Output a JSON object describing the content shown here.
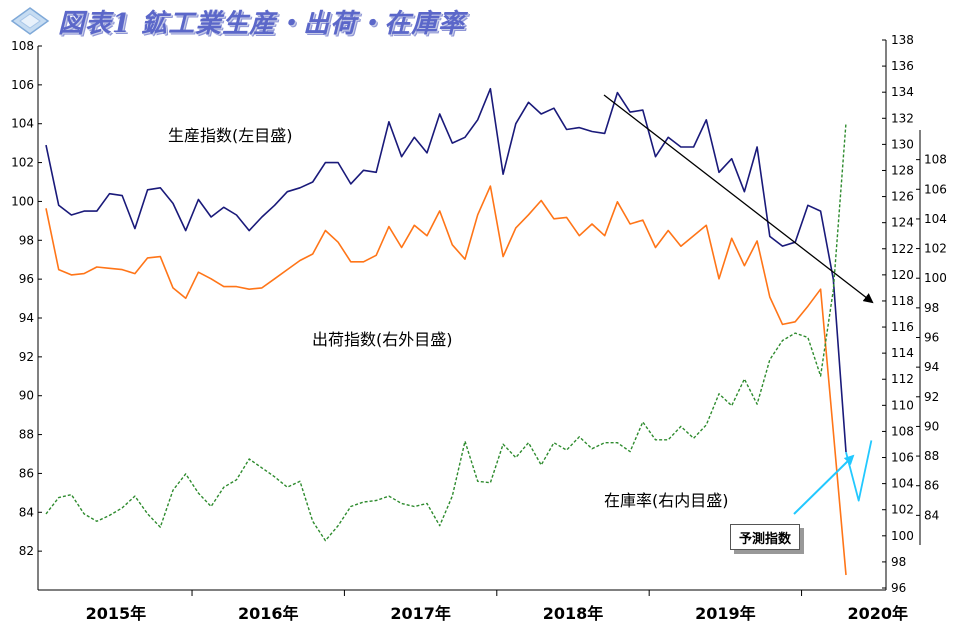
{
  "title": "図表1 鉱工業生産・出荷・在庫率",
  "colors": {
    "production": "#1a1a7a",
    "shipments": "#ff7518",
    "inventory": "#2e8b2e",
    "forecast": "#22c8ff",
    "trend": "#000000"
  },
  "annotations": {
    "production": "生産指数(左目盛)",
    "shipments": "出荷指数(右外目盛)",
    "inventory": "在庫率(右内目盛)",
    "forecast": "予測指数"
  },
  "chart_data": {
    "type": "line",
    "x_labels": [
      "2015年",
      "2016年",
      "2017年",
      "2018年",
      "2019年",
      "2020年"
    ],
    "axes": {
      "left": {
        "min": 80,
        "max": 108,
        "ticks": [
          82,
          84,
          86,
          88,
          90,
          92,
          94,
          96,
          98,
          100,
          102,
          104,
          106,
          108
        ]
      },
      "right_inner": {
        "min": 82,
        "max": 110,
        "ticks": [
          84,
          86,
          88,
          90,
          92,
          94,
          96,
          98,
          100,
          102,
          104,
          106,
          108
        ]
      },
      "right_outer": {
        "min": 96,
        "max": 138,
        "ticks": [
          96,
          98,
          100,
          102,
          104,
          106,
          108,
          110,
          112,
          114,
          116,
          118,
          120,
          122,
          124,
          126,
          128,
          130,
          132,
          134,
          136,
          138
        ]
      }
    },
    "series": [
      {
        "key": "production",
        "axis": "left",
        "values": [
          102.9,
          99.8,
          99.3,
          99.5,
          99.5,
          100.4,
          100.3,
          98.6,
          100.6,
          100.7,
          99.9,
          98.5,
          100.1,
          99.2,
          99.7,
          99.3,
          98.5,
          99.2,
          99.8,
          100.5,
          100.7,
          101.0,
          102.0,
          102.0,
          100.9,
          101.6,
          101.5,
          104.1,
          102.3,
          103.3,
          102.5,
          104.5,
          103.0,
          103.3,
          104.2,
          105.8,
          101.4,
          104.0,
          105.1,
          104.5,
          104.8,
          103.7,
          103.8,
          103.6,
          103.5,
          105.6,
          104.6,
          104.7,
          102.3,
          103.3,
          102.8,
          102.8,
          104.2,
          101.5,
          102.2,
          100.5,
          102.8,
          98.2,
          97.7,
          97.9,
          99.8,
          99.5,
          96.0,
          87.1
        ]
      },
      {
        "key": "shipments",
        "axis": "right_outer",
        "values": [
          125.1,
          120.4,
          120.0,
          120.1,
          120.6,
          120.5,
          120.4,
          120.1,
          121.3,
          121.4,
          119.0,
          118.2,
          120.2,
          119.7,
          119.1,
          119.1,
          118.9,
          119.0,
          119.7,
          120.4,
          121.1,
          121.6,
          123.4,
          122.5,
          121.0,
          121.0,
          121.5,
          123.7,
          122.1,
          123.8,
          123.0,
          124.9,
          122.3,
          121.2,
          124.6,
          126.8,
          121.4,
          123.6,
          124.6,
          125.7,
          124.3,
          124.4,
          123.0,
          123.9,
          123.0,
          125.6,
          123.9,
          124.2,
          122.1,
          123.4,
          122.2,
          123.0,
          123.8,
          119.7,
          122.8,
          120.7,
          122.6,
          118.3,
          116.2,
          116.4,
          117.6,
          118.9,
          108.0,
          97.0
        ]
      },
      {
        "key": "inventory",
        "axis": "right_inner",
        "values": [
          84.1,
          85.2,
          85.4,
          84.1,
          83.6,
          84.0,
          84.5,
          85.3,
          84.1,
          83.2,
          85.7,
          86.8,
          85.5,
          84.6,
          85.9,
          86.4,
          87.8,
          87.2,
          86.6,
          85.9,
          86.3,
          83.6,
          82.3,
          83.3,
          84.6,
          84.9,
          85.0,
          85.3,
          84.8,
          84.6,
          84.8,
          83.3,
          85.3,
          89.0,
          86.3,
          86.2,
          88.8,
          87.9,
          88.9,
          87.4,
          88.9,
          88.4,
          89.3,
          88.5,
          88.9,
          88.9,
          88.3,
          90.3,
          89.1,
          89.1,
          90.0,
          89.2,
          90.1,
          92.2,
          91.4,
          93.2,
          91.5,
          94.5,
          95.8,
          96.3,
          96.0,
          93.4,
          99.2,
          110.5
        ]
      },
      {
        "key": "forecast",
        "axis": "left",
        "x_start_index": 63,
        "values": [
          87.1,
          84.6,
          87.7
        ]
      }
    ]
  }
}
